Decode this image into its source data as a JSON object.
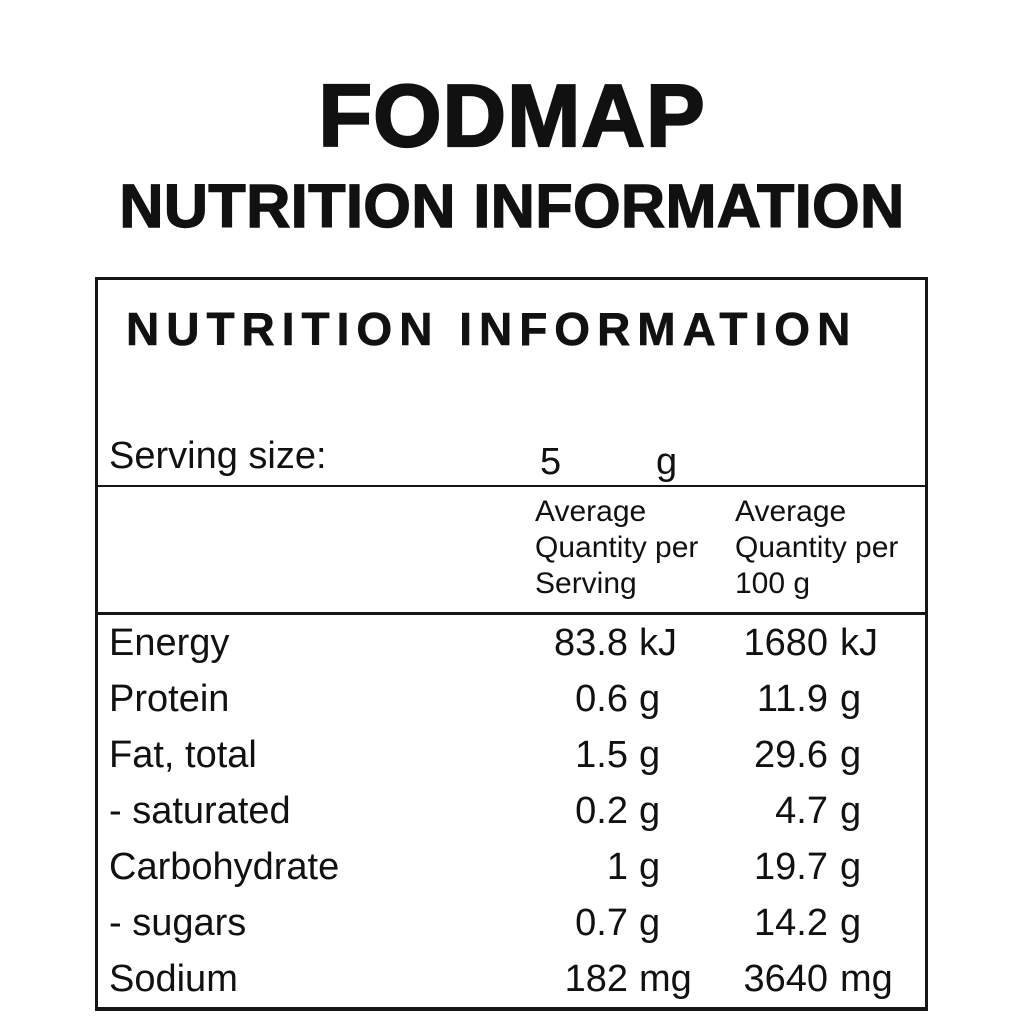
{
  "header": {
    "brand_title": "FODMAP",
    "page_heading": "NUTRITION INFORMATION"
  },
  "panel": {
    "heading": "NUTRITION INFORMATION",
    "serving": {
      "label": "Serving size:",
      "value": "5",
      "unit": "g"
    },
    "columns": {
      "per_serving": {
        "line1": "Average",
        "line2": "Quantity per",
        "line3": "Serving"
      },
      "per_100g": {
        "line1": "Average",
        "line2": "Quantity per",
        "line3": "100 g"
      }
    },
    "rows": [
      {
        "label": "Energy",
        "serving_value": "83.8",
        "serving_unit": "kJ",
        "per100_value": "1680",
        "per100_unit": "kJ"
      },
      {
        "label": "Protein",
        "serving_value": "0.6",
        "serving_unit": "g",
        "per100_value": "11.9",
        "per100_unit": "g"
      },
      {
        "label": "Fat, total",
        "serving_value": "1.5",
        "serving_unit": "g",
        "per100_value": "29.6",
        "per100_unit": "g"
      },
      {
        "label": "- saturated",
        "serving_value": "0.2",
        "serving_unit": "g",
        "per100_value": "4.7",
        "per100_unit": "g"
      },
      {
        "label": "Carbohydrate",
        "serving_value": "1",
        "serving_unit": "g",
        "per100_value": "19.7",
        "per100_unit": "g"
      },
      {
        "label": "- sugars",
        "serving_value": "0.7",
        "serving_unit": "g",
        "per100_value": "14.2",
        "per100_unit": "g"
      },
      {
        "label": "Sodium",
        "serving_value": "182",
        "serving_unit": "mg",
        "per100_value": "3640",
        "per100_unit": "mg"
      }
    ],
    "colors": {
      "text": "#111111",
      "border": "#161616",
      "background": "#ffffff"
    }
  }
}
